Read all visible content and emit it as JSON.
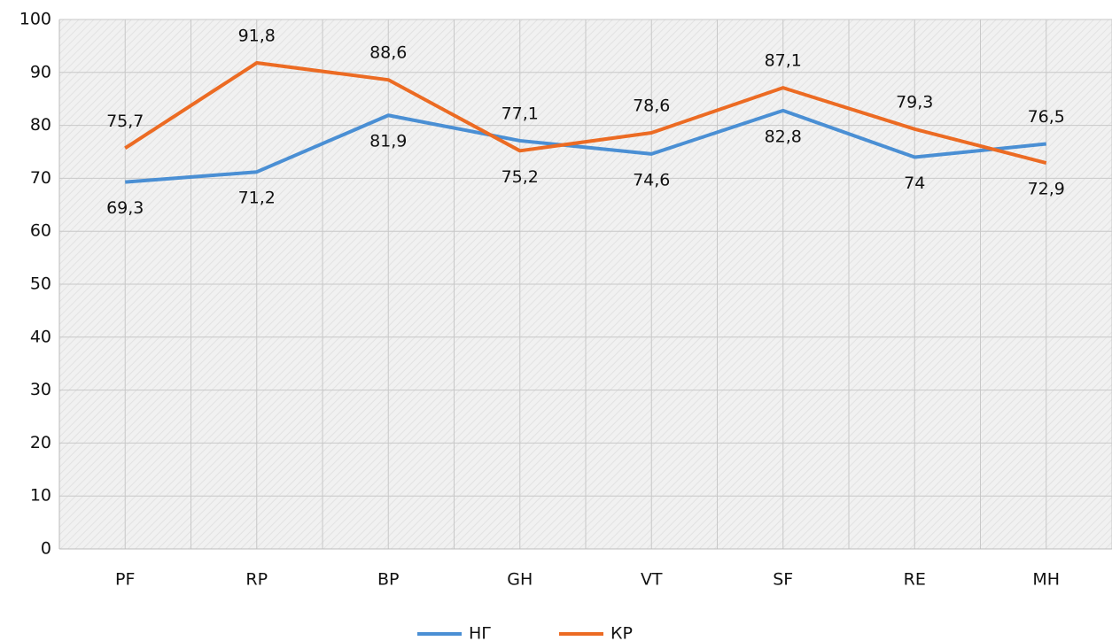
{
  "chart_data": {
    "type": "line",
    "categories": [
      "PF",
      "RP",
      "BP",
      "GH",
      "VT",
      "SF",
      "RE",
      "MH"
    ],
    "series": [
      {
        "name": "НГ",
        "color": "#4a8fd4",
        "values": [
          69.3,
          71.2,
          81.9,
          77.1,
          74.6,
          82.8,
          74,
          76.5
        ],
        "value_labels": [
          "69,3",
          "71,2",
          "81,9",
          "77,1",
          "74,6",
          "82,8",
          "74",
          "76,5"
        ]
      },
      {
        "name": "КР",
        "color": "#ec6b23",
        "values": [
          75.7,
          91.8,
          88.6,
          75.2,
          78.6,
          87.1,
          79.3,
          72.9
        ],
        "value_labels": [
          "75,7",
          "91,8",
          "88,6",
          "75,2",
          "78,6",
          "87,1",
          "79,3",
          "72,9"
        ]
      }
    ],
    "ylim": [
      0,
      100
    ],
    "yticks": [
      0,
      10,
      20,
      30,
      40,
      50,
      60,
      70,
      80,
      90,
      100
    ],
    "grid": true,
    "legend": "bottom"
  }
}
